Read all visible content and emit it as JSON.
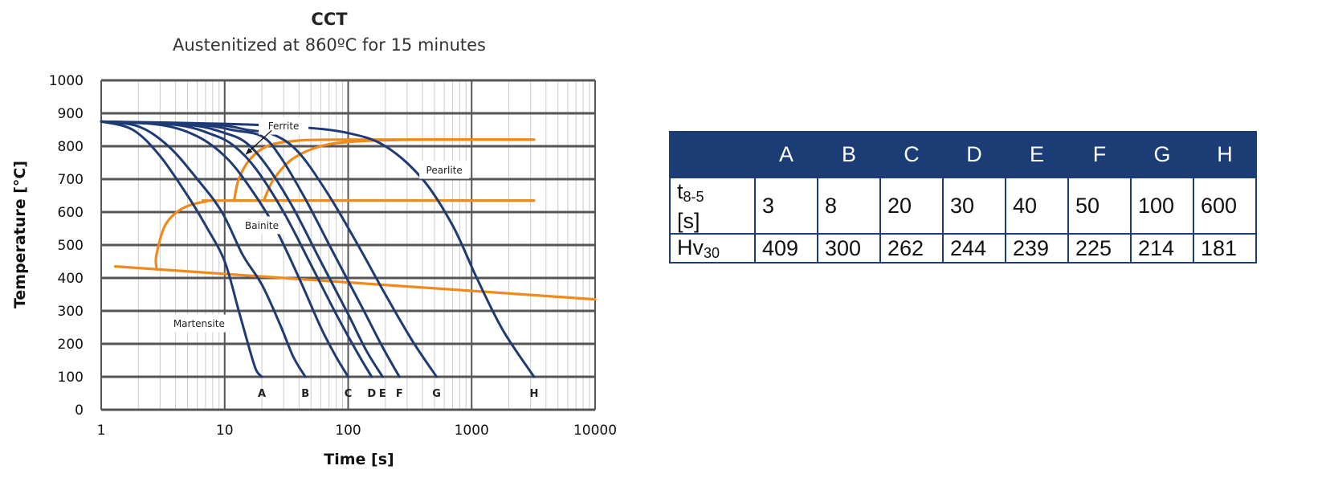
{
  "chart_data": {
    "type": "line",
    "title": "CCT",
    "subtitle": "Austenitized at 860ºC for 15 minutes",
    "xlabel": "Time [s]",
    "ylabel": "Temperature [°C]",
    "x_scale": "log",
    "xlim": [
      1,
      10000
    ],
    "ylim": [
      0,
      1000
    ],
    "x_tick_labels": [
      "1",
      "10",
      "100",
      "1000",
      "10000"
    ],
    "y_tick_labels": [
      "0",
      "100",
      "200",
      "300",
      "400",
      "500",
      "600",
      "700",
      "800",
      "900",
      "1000"
    ],
    "grid": true,
    "phase_labels": [
      "Ferrite",
      "Pearlite",
      "Bainite",
      "Martensite"
    ],
    "cooling_curves": [
      {
        "name": "A",
        "points": [
          [
            1,
            875
          ],
          [
            1.8,
            850
          ],
          [
            3,
            770
          ],
          [
            5,
            650
          ],
          [
            7,
            560
          ],
          [
            10,
            450
          ],
          [
            13,
            300
          ],
          [
            16,
            180
          ],
          [
            18,
            120
          ],
          [
            20,
            100
          ]
        ]
      },
      {
        "name": "B",
        "points": [
          [
            1,
            875
          ],
          [
            2,
            860
          ],
          [
            3.5,
            800
          ],
          [
            6,
            700
          ],
          [
            9.5,
            600
          ],
          [
            14,
            470
          ],
          [
            20,
            380
          ],
          [
            28,
            260
          ],
          [
            36,
            160
          ],
          [
            45,
            100
          ]
        ]
      },
      {
        "name": "C",
        "points": [
          [
            1,
            875
          ],
          [
            3,
            865
          ],
          [
            6,
            830
          ],
          [
            10,
            770
          ],
          [
            15,
            690
          ],
          [
            25,
            560
          ],
          [
            40,
            400
          ],
          [
            60,
            250
          ],
          [
            80,
            160
          ],
          [
            100,
            100
          ]
        ]
      },
      {
        "name": "D",
        "points": [
          [
            1,
            875
          ],
          [
            4,
            865
          ],
          [
            8,
            835
          ],
          [
            12,
            800
          ],
          [
            18,
            730
          ],
          [
            30,
            600
          ],
          [
            50,
            440
          ],
          [
            80,
            290
          ],
          [
            120,
            170
          ],
          [
            155,
            100
          ]
        ]
      },
      {
        "name": "E",
        "points": [
          [
            1,
            875
          ],
          [
            5,
            865
          ],
          [
            10,
            840
          ],
          [
            15,
            810
          ],
          [
            22,
            740
          ],
          [
            35,
            620
          ],
          [
            60,
            450
          ],
          [
            100,
            290
          ],
          [
            140,
            180
          ],
          [
            190,
            100
          ]
        ]
      },
      {
        "name": "F",
        "points": [
          [
            1,
            875
          ],
          [
            6,
            865
          ],
          [
            12,
            848
          ],
          [
            20,
            830
          ],
          [
            28,
            770
          ],
          [
            45,
            640
          ],
          [
            75,
            480
          ],
          [
            130,
            310
          ],
          [
            190,
            190
          ],
          [
            260,
            100
          ]
        ]
      },
      {
        "name": "G",
        "points": [
          [
            1,
            875
          ],
          [
            8,
            865
          ],
          [
            15,
            850
          ],
          [
            25,
            835
          ],
          [
            40,
            780
          ],
          [
            70,
            650
          ],
          [
            120,
            500
          ],
          [
            200,
            350
          ],
          [
            330,
            210
          ],
          [
            520,
            100
          ]
        ]
      },
      {
        "name": "H",
        "points": [
          [
            1,
            875
          ],
          [
            10,
            868
          ],
          [
            40,
            858
          ],
          [
            100,
            840
          ],
          [
            200,
            800
          ],
          [
            400,
            700
          ],
          [
            700,
            560
          ],
          [
            1100,
            400
          ],
          [
            1800,
            240
          ],
          [
            3200,
            100
          ]
        ]
      }
    ],
    "phase_boundaries": [
      {
        "points": [
          [
            2.8,
            430
          ],
          [
            2.8,
            470
          ],
          [
            3.3,
            560
          ],
          [
            4.5,
            610
          ],
          [
            7,
            632
          ],
          [
            12,
            635
          ],
          [
            3200,
            635
          ]
        ]
      },
      {
        "points": [
          [
            12,
            640
          ],
          [
            13,
            700
          ],
          [
            16,
            760
          ],
          [
            22,
            800
          ],
          [
            35,
            815
          ],
          [
            80,
            820
          ],
          [
            3200,
            820
          ]
        ]
      },
      {
        "points": [
          [
            21,
            640
          ],
          [
            25,
            700
          ],
          [
            35,
            760
          ],
          [
            60,
            800
          ],
          [
            120,
            815
          ],
          [
            400,
            820
          ],
          [
            3200,
            820
          ]
        ]
      },
      {
        "points": [
          [
            1.3,
            435
          ],
          [
            10000,
            335
          ]
        ]
      }
    ]
  },
  "table": {
    "headers": [
      "",
      "A",
      "B",
      "C",
      "D",
      "E",
      "F",
      "G",
      "H"
    ],
    "row1_label_main": "t",
    "row1_label_sub": "8-5",
    "row1_label_unit": "[s]",
    "row1_values": [
      "3",
      "8",
      "20",
      "30",
      "40",
      "50",
      "100",
      "600"
    ],
    "row2_label_main": "Hv",
    "row2_label_sub": "30",
    "row2_values": [
      "409",
      "300",
      "262",
      "244",
      "239",
      "225",
      "214",
      "181"
    ]
  },
  "colors": {
    "cooling": "#1f3b75",
    "phase": "#ef8a1c",
    "grid_major": "#555555",
    "grid_minor": "#cccccc",
    "table_header": "#1b3c74"
  }
}
